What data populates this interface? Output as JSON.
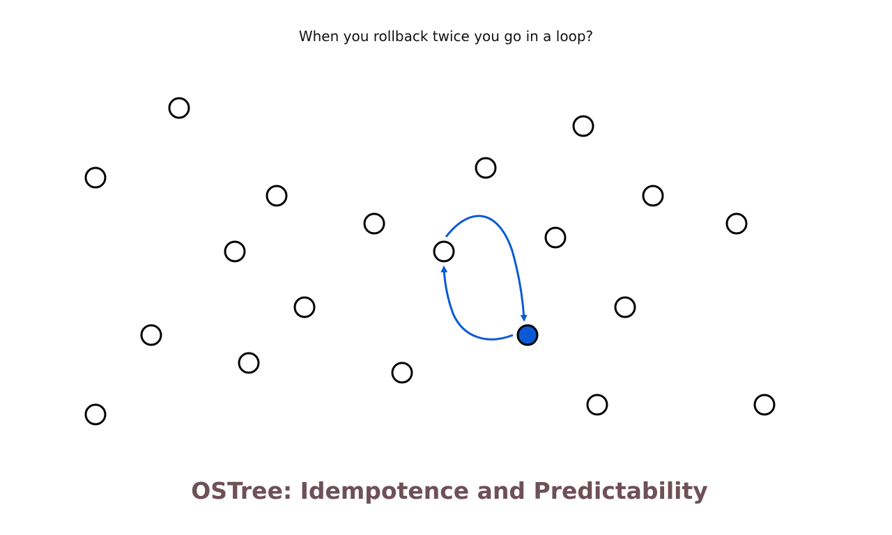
{
  "caption": "When you rollback twice you go in a loop?",
  "title": "OSTree: Idempotence and Predictability",
  "colors": {
    "title": "#6e5058",
    "accent": "#0a5ad6",
    "node_stroke": "#000000",
    "node_fill": "#ffffff"
  }
}
